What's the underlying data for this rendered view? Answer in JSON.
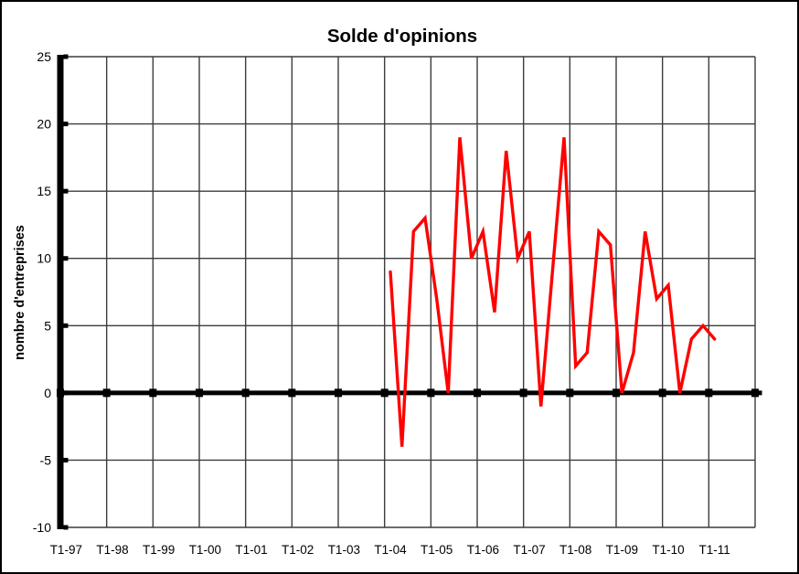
{
  "title": "Solde d'opinions",
  "chart_data": {
    "type": "line",
    "title": "Solde d'opinions",
    "xlabel": "",
    "ylabel": "nombre d'entreprises",
    "ylim": [
      -10,
      25
    ],
    "ytick_step": 5,
    "yticks": [
      25,
      20,
      15,
      10,
      5,
      0,
      -5,
      -10
    ],
    "grid": true,
    "legend": false,
    "x_axis_years": [
      "T1-97",
      "T1-98",
      "T1-99",
      "T1-00",
      "T1-01",
      "T1-02",
      "T1-03",
      "T1-04",
      "T1-05",
      "T1-06",
      "T1-07",
      "T1-08",
      "T1-09",
      "T1-10",
      "T1-11"
    ],
    "quarters_per_year": 4,
    "axis_total_quarters": 60,
    "data_start_quarter_index": 28,
    "categories": [
      "T1-04",
      "T2-04",
      "T3-04",
      "T4-04",
      "T1-05",
      "T2-05",
      "T3-05",
      "T4-05",
      "T1-06",
      "T2-06",
      "T3-06",
      "T4-06",
      "T1-07",
      "T2-07",
      "T3-07",
      "T4-07",
      "T1-08",
      "T2-08",
      "T3-08",
      "T4-08",
      "T1-09",
      "T2-09",
      "T3-09",
      "T4-09",
      "T1-10",
      "T2-10",
      "T3-10",
      "T4-10",
      "T1-11"
    ],
    "series": [
      {
        "name": "Solde d'opinions",
        "color": "#ff0000",
        "values": [
          9,
          -4,
          12,
          13,
          7,
          0,
          19,
          10,
          12,
          6,
          18,
          10,
          12,
          -1,
          9,
          19,
          2,
          3,
          12,
          11,
          0,
          3,
          12,
          7,
          8,
          0,
          4,
          5,
          4
        ]
      }
    ],
    "colors": {
      "background": "#ffffff",
      "gridline": "#3c3c3c",
      "axis": "#000000",
      "text": "#000000",
      "border": "#000000"
    }
  }
}
